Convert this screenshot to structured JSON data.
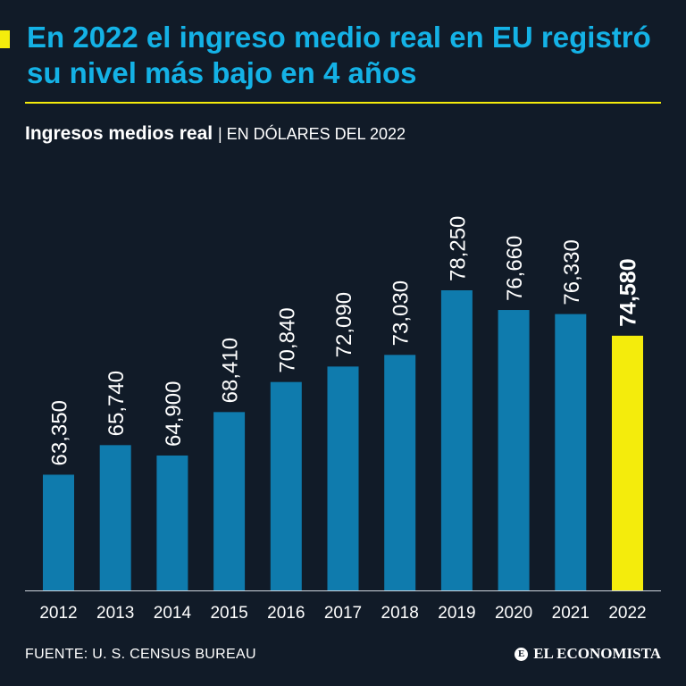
{
  "header": {
    "title": "En 2022 el ingreso medio real en EU registró su nivel más bajo en 4 años",
    "subtitle_main": "Ingresos medios real",
    "subtitle_unit": "| EN DÓLARES DEL 2022"
  },
  "footer": {
    "source": "FUENTE: U. S. CENSUS BUREAU",
    "brand": "EL ECONOMISTA"
  },
  "colors": {
    "background": "#111b28",
    "title": "#14b2e6",
    "accent": "#f4ec0c",
    "bar": "#0f7bad",
    "highlight_bar": "#f4ec0c",
    "text": "#ffffff"
  },
  "chart_data": {
    "type": "bar",
    "title": "Ingresos medios real",
    "ylabel": "EN DÓLARES DEL 2022",
    "xlabel": "",
    "categories": [
      "2012",
      "2013",
      "2014",
      "2015",
      "2016",
      "2017",
      "2018",
      "2019",
      "2020",
      "2021",
      "2022"
    ],
    "values": [
      63350,
      65740,
      64900,
      68410,
      70840,
      72090,
      73030,
      78250,
      76660,
      76330,
      74580
    ],
    "value_labels": [
      "63,350",
      "65,740",
      "64,900",
      "68,410",
      "70,840",
      "72,090",
      "73,030",
      "78,250",
      "76,660",
      "76,330",
      "74,580"
    ],
    "highlight_index": 10,
    "grid": false
  }
}
